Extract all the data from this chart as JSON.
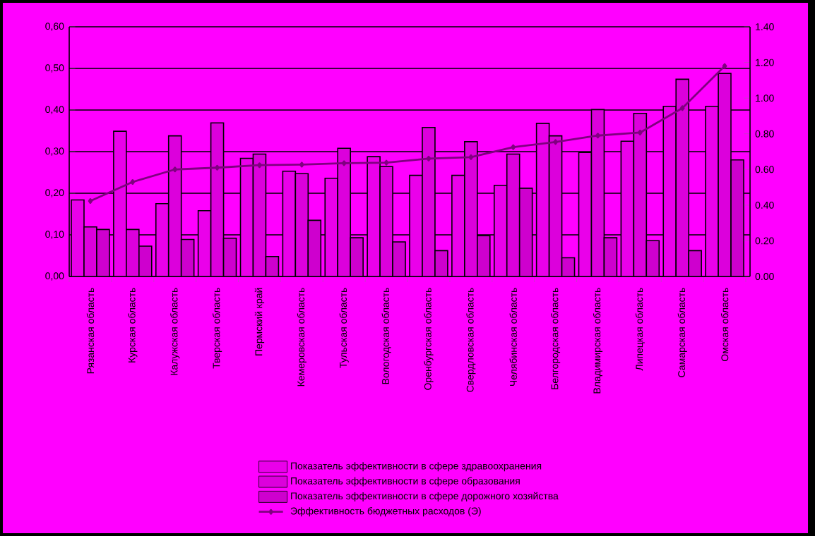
{
  "chart_data": {
    "type": "bar",
    "categories": [
      "Рязанская область",
      "Курская область",
      "Калужская область",
      "Тверская область",
      "Пермский край",
      "Кемеровская область",
      "Тульская область",
      "Вологодская область",
      "Оренбургская область",
      "Свердловская область",
      "Челябинская область",
      "Белгородская область",
      "Владимирская область",
      "Липецкая область",
      "Самарская область",
      "Омская область"
    ],
    "series": [
      {
        "name": "Показатель эффективности в сфере здравоохранения",
        "color": "#ea00ea",
        "values": [
          0.184,
          0.349,
          0.175,
          0.158,
          0.284,
          0.253,
          0.236,
          0.288,
          0.243,
          0.243,
          0.219,
          0.368,
          0.298,
          0.325,
          0.409,
          0.409
        ]
      },
      {
        "name": "Показатель эффективности в сфере образования",
        "color": "#dc00dc",
        "values": [
          0.119,
          0.113,
          0.338,
          0.369,
          0.294,
          0.247,
          0.308,
          0.264,
          0.358,
          0.324,
          0.294,
          0.338,
          0.401,
          0.392,
          0.474,
          0.488
        ]
      },
      {
        "name": "Показатель эффективности в сфере дорожного хозяйства",
        "color": "#ce00ce",
        "values": [
          0.113,
          0.073,
          0.089,
          0.092,
          0.048,
          0.135,
          0.093,
          0.083,
          0.062,
          0.098,
          0.212,
          0.045,
          0.093,
          0.086,
          0.062,
          0.28
        ]
      },
      {
        "name": "Эффективность бюджетных расходов (Э)",
        "type": "line",
        "axis": "y2",
        "color": "#800080",
        "marker": "diamond",
        "line_style": "solid",
        "values": [
          0.423,
          0.53,
          0.6,
          0.61,
          0.624,
          0.627,
          0.635,
          0.638,
          0.661,
          0.669,
          0.725,
          0.754,
          0.79,
          0.807,
          0.944,
          1.18
        ]
      }
    ],
    "ylim": [
      0,
      0.6
    ],
    "yticks": [
      {
        "value": 0,
        "label": "0,00"
      },
      {
        "value": 0.1,
        "label": "0,10"
      },
      {
        "value": 0.2,
        "label": "0,20"
      },
      {
        "value": 0.3,
        "label": "0,30"
      },
      {
        "value": 0.4,
        "label": "0,40"
      },
      {
        "value": 0.5,
        "label": "0,50"
      },
      {
        "value": 0.6,
        "label": "0,60"
      }
    ],
    "y2lim": [
      0,
      1.4
    ],
    "y2ticks": [
      {
        "value": 0,
        "label": "0.00"
      },
      {
        "value": 0.2,
        "label": "0.20"
      },
      {
        "value": 0.4,
        "label": "0.40"
      },
      {
        "value": 0.6,
        "label": "0.60"
      },
      {
        "value": 0.8,
        "label": "0.80"
      },
      {
        "value": 1.0,
        "label": "1.00"
      },
      {
        "value": 1.2,
        "label": "1.20"
      },
      {
        "value": 1.4,
        "label": "1.40"
      }
    ],
    "grid": "y",
    "legend": "bottom"
  }
}
